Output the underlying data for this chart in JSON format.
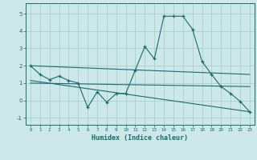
{
  "xlabel": "Humidex (Indice chaleur)",
  "xlim": [
    -0.5,
    23.5
  ],
  "ylim": [
    -1.4,
    5.6
  ],
  "yticks": [
    -1,
    0,
    1,
    2,
    3,
    4,
    5
  ],
  "xticks": [
    0,
    1,
    2,
    3,
    4,
    5,
    6,
    7,
    8,
    9,
    10,
    11,
    12,
    13,
    14,
    15,
    16,
    17,
    18,
    19,
    20,
    21,
    22,
    23
  ],
  "background_color": "#cce8e8",
  "grid_color": "#aacece",
  "line_color": "#1a6b6b",
  "lines": [
    {
      "x": [
        0,
        1,
        2,
        3,
        4,
        5,
        6,
        7,
        8,
        9,
        10,
        11,
        12,
        13,
        14,
        15,
        16,
        17,
        18,
        19,
        20,
        21,
        22,
        23
      ],
      "y": [
        2.0,
        1.5,
        1.2,
        1.4,
        1.15,
        1.0,
        -0.4,
        0.5,
        -0.1,
        0.4,
        0.4,
        1.75,
        3.1,
        2.4,
        4.85,
        4.85,
        4.85,
        4.1,
        2.25,
        1.5,
        0.8,
        0.4,
        -0.05,
        -0.65
      ],
      "with_markers": true
    },
    {
      "x": [
        0,
        23
      ],
      "y": [
        2.0,
        1.5
      ],
      "with_markers": false
    },
    {
      "x": [
        0,
        23
      ],
      "y": [
        1.15,
        -0.65
      ],
      "with_markers": false
    },
    {
      "x": [
        0,
        23
      ],
      "y": [
        1.0,
        0.8
      ],
      "with_markers": false
    }
  ]
}
